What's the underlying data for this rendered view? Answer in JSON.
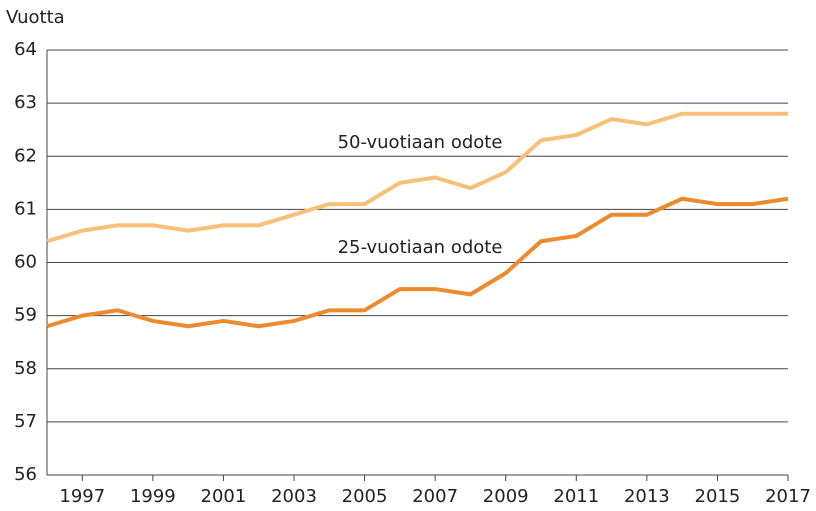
{
  "chart_data": {
    "type": "line",
    "y_label": "Vuotta",
    "x": [
      1996,
      1997,
      1998,
      1999,
      2000,
      2001,
      2002,
      2003,
      2004,
      2005,
      2006,
      2007,
      2008,
      2009,
      2010,
      2011,
      2012,
      2013,
      2014,
      2015,
      2016,
      2017
    ],
    "series": [
      {
        "name": "50-vuotiaan odote",
        "color": "#f8bf78",
        "values": [
          60.4,
          60.6,
          60.7,
          60.7,
          60.6,
          60.7,
          60.7,
          60.9,
          61.1,
          61.1,
          61.5,
          61.6,
          61.4,
          61.7,
          62.3,
          62.4,
          62.7,
          62.6,
          62.8,
          62.8,
          62.8,
          62.8
        ]
      },
      {
        "name": "25-vuotiaan odote",
        "color": "#ec8a2c",
        "values": [
          58.8,
          59.0,
          59.1,
          58.9,
          58.8,
          58.9,
          58.8,
          58.9,
          59.1,
          59.1,
          59.5,
          59.5,
          59.4,
          59.8,
          60.4,
          60.5,
          60.9,
          60.9,
          61.2,
          61.1,
          61.1,
          61.2
        ]
      }
    ],
    "xlim": [
      1996,
      2017
    ],
    "xticks": [
      1997,
      1999,
      2001,
      2003,
      2005,
      2007,
      2009,
      2011,
      2013,
      2015,
      2017
    ],
    "ylim": [
      56,
      64
    ],
    "yticks": [
      56,
      57,
      58,
      59,
      60,
      61,
      62,
      63,
      64
    ],
    "grid": true
  }
}
